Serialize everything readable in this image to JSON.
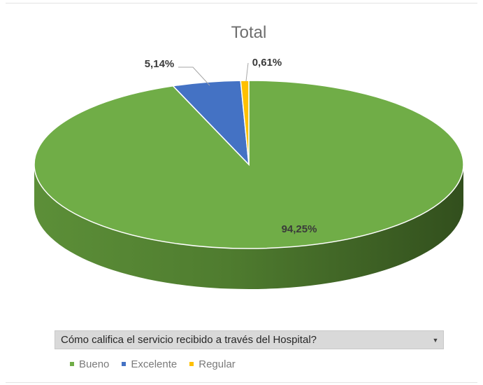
{
  "chart_data": {
    "type": "pie",
    "title": "Total",
    "series": [
      {
        "name": "Bueno",
        "value": 94.25,
        "label": "94,25%",
        "color": "#70ad47"
      },
      {
        "name": "Excelente",
        "value": 5.14,
        "label": "5,14%",
        "color": "#4472c4"
      },
      {
        "name": "Regular",
        "value": 0.61,
        "label": "0,61%",
        "color": "#ffc000"
      }
    ],
    "legend_position": "bottom",
    "style": "3d"
  },
  "filter": {
    "label": "Cómo califica el servicio recibido a través del Hospital?",
    "dropdown_icon": "triangle-down-icon"
  }
}
